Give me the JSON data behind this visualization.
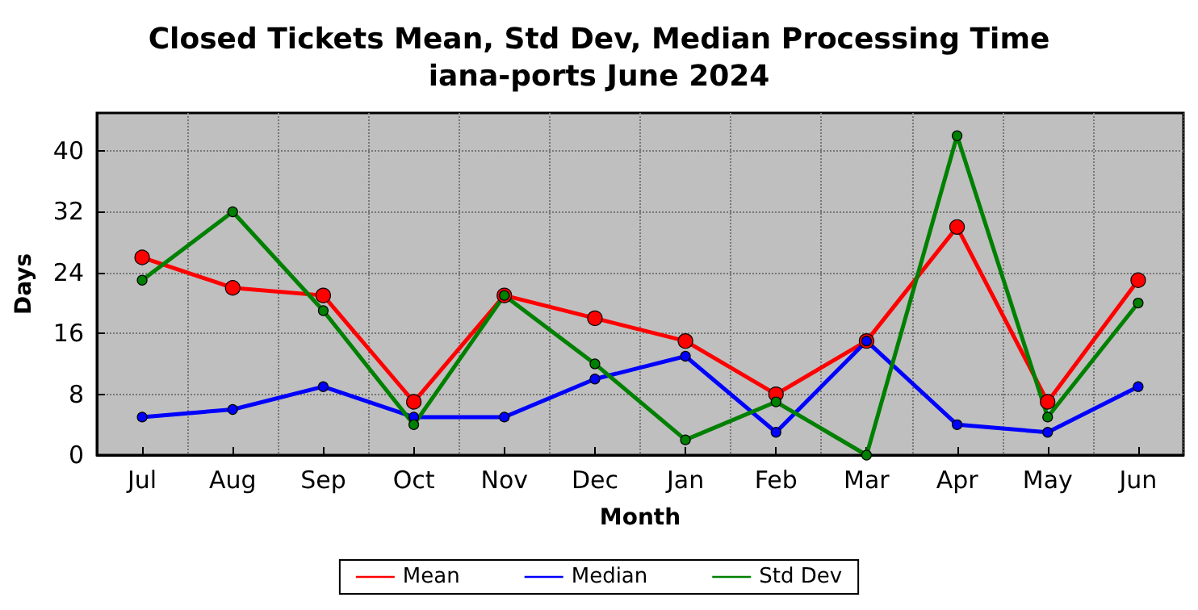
{
  "chart_data": {
    "type": "line",
    "title": "Closed Tickets Mean, Std Dev, Median Processing Time\niana-ports June 2024",
    "xlabel": "Month",
    "ylabel": "Days",
    "categories": [
      "Jul",
      "Aug",
      "Sep",
      "Oct",
      "Nov",
      "Dec",
      "Jan",
      "Feb",
      "Mar",
      "Apr",
      "May",
      "Jun"
    ],
    "series": [
      {
        "name": "Mean",
        "color": "#ff0000",
        "values": [
          26,
          22,
          21,
          7,
          21,
          18,
          15,
          8,
          15,
          30,
          7,
          23
        ]
      },
      {
        "name": "Median",
        "color": "#0000ff",
        "values": [
          5,
          6,
          9,
          5,
          5,
          10,
          13,
          3,
          15,
          4,
          3,
          9
        ]
      },
      {
        "name": "Std Dev",
        "color": "#008000",
        "values": [
          23,
          32,
          19,
          4,
          21,
          12,
          2,
          7,
          0,
          42,
          5,
          20
        ]
      }
    ],
    "ylim": [
      0,
      45
    ],
    "yticks": [
      0,
      8,
      16,
      24,
      32,
      40
    ],
    "grid": true,
    "legend": "bottom",
    "marker": "circle",
    "line_style": "solid"
  }
}
